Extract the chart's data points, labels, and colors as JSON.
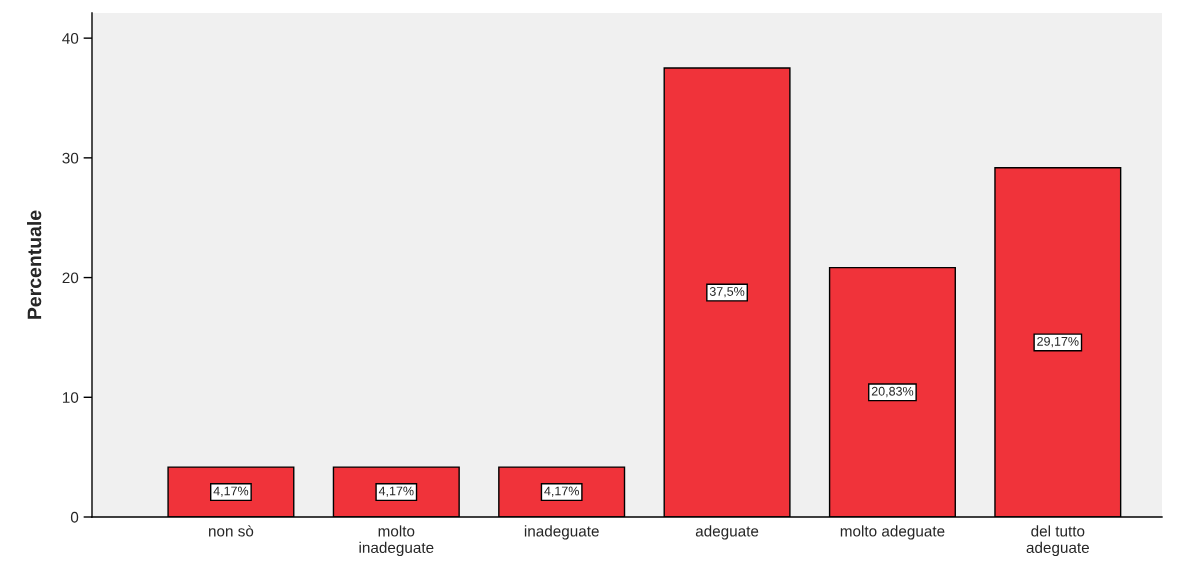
{
  "chart_data": {
    "type": "bar",
    "ylabel": "Percentuale",
    "categories": [
      "non sò",
      "molto\ninadeguate",
      "inadeguate",
      "adeguate",
      "molto adeguate",
      "del tutto\nadeguate"
    ],
    "values": [
      4.17,
      4.17,
      4.17,
      37.5,
      20.83,
      29.17
    ],
    "value_labels": [
      "4,17%",
      "4,17%",
      "4,17%",
      "37,5%",
      "20,83%",
      "29,17%"
    ],
    "color": "#f0333a",
    "ylim": [
      0,
      42.1
    ],
    "yticks": [
      0,
      10,
      20,
      30,
      40
    ],
    "grid": false,
    "legend": false
  }
}
